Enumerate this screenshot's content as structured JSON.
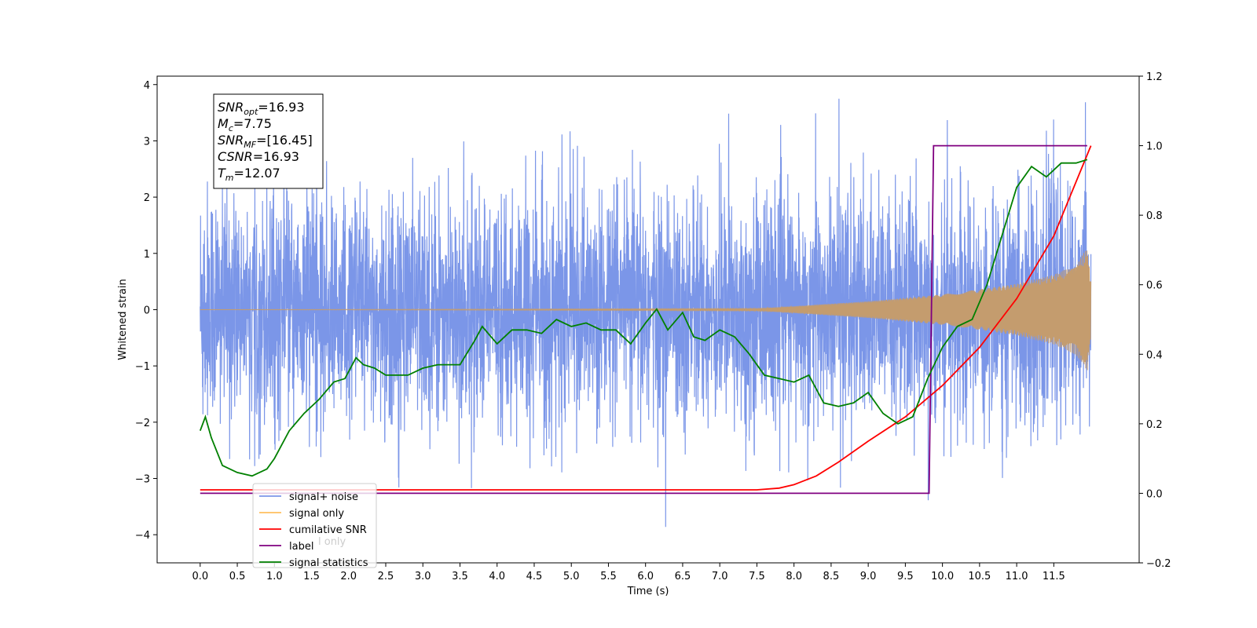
{
  "chart_data": {
    "type": "line",
    "xlabel": "Time (s)",
    "ylabel": "Whitened strain",
    "xlim": [
      -0.58,
      12.65
    ],
    "ylim": [
      -4.5,
      4.15
    ],
    "y2lim": [
      -0.2,
      1.2
    ],
    "x_ticks": [
      "0.0",
      "0.5",
      "1.0",
      "1.5",
      "2.0",
      "2.5",
      "3.0",
      "3.5",
      "4.0",
      "4.5",
      "5.0",
      "5.5",
      "6.0",
      "6.5",
      "7.0",
      "7.5",
      "8.0",
      "8.5",
      "9.0",
      "9.5",
      "10.0",
      "10.5",
      "11.0",
      "11.5"
    ],
    "y_ticks": [
      4,
      3,
      2,
      1,
      0,
      -1,
      -2,
      -3,
      -4
    ],
    "y2_ticks": [
      "1.2",
      "1.0",
      "0.8",
      "0.6",
      "0.4",
      "0.2",
      "0.0",
      "−0.2"
    ],
    "info_box": [
      {
        "base": "SNR",
        "sub": "opt",
        "value": "=16.93"
      },
      {
        "base": "M",
        "sub": "c",
        "value": "=7.75"
      },
      {
        "base": "SNR",
        "sub": "MF",
        "value": "=[16.45]"
      },
      {
        "base": "CSNR",
        "sub": "",
        "value": "=16.93"
      },
      {
        "base": "T",
        "sub": "m",
        "value": "=12.07"
      }
    ],
    "series": [
      {
        "name": "signal+ noise",
        "color": "#7b96e8",
        "axis": "left",
        "description_values": {
          "x_range": [
            0.0,
            12.0
          ],
          "typical_envelope": [
            -1.7,
            1.7
          ],
          "max_peak": 3.75,
          "min_peak": -4.1
        }
      },
      {
        "name": "signal only",
        "color": "#c49c6e",
        "axis": "left",
        "envelope": {
          "x": [
            0.0,
            7.5,
            8.0,
            9.0,
            10.0,
            10.5,
            11.0,
            11.5,
            11.8,
            11.95,
            12.0
          ],
          "amp": [
            0.0,
            0.02,
            0.06,
            0.15,
            0.27,
            0.36,
            0.46,
            0.62,
            0.8,
            1.1,
            0.5
          ]
        }
      },
      {
        "name": "cumilative SNR",
        "color": "#ff0000",
        "axis": "right",
        "x": [
          0.0,
          7.5,
          7.8,
          8.0,
          8.3,
          8.6,
          9.0,
          9.5,
          10.0,
          10.5,
          11.0,
          11.5,
          12.0
        ],
        "y": [
          0.01,
          0.01,
          0.015,
          0.025,
          0.05,
          0.09,
          0.15,
          0.22,
          0.31,
          0.42,
          0.56,
          0.74,
          1.0
        ]
      },
      {
        "name": "label",
        "color": "#800080",
        "axis": "right",
        "x": [
          0.0,
          9.82,
          9.88,
          11.95
        ],
        "y": [
          0.0,
          0.0,
          1.0,
          1.0
        ]
      },
      {
        "name": "signal statistics",
        "color": "#008000",
        "axis": "right",
        "x": [
          0.0,
          0.07,
          0.15,
          0.3,
          0.5,
          0.7,
          0.9,
          1.0,
          1.2,
          1.4,
          1.6,
          1.8,
          1.95,
          2.1,
          2.2,
          2.35,
          2.5,
          2.8,
          3.0,
          3.2,
          3.5,
          3.7,
          3.8,
          4.0,
          4.2,
          4.4,
          4.6,
          4.8,
          5.0,
          5.2,
          5.4,
          5.6,
          5.8,
          6.0,
          6.15,
          6.3,
          6.5,
          6.65,
          6.8,
          7.0,
          7.2,
          7.4,
          7.6,
          7.8,
          8.0,
          8.2,
          8.4,
          8.6,
          8.8,
          9.0,
          9.2,
          9.4,
          9.6,
          9.8,
          10.0,
          10.2,
          10.4,
          10.6,
          10.8,
          11.0,
          11.2,
          11.4,
          11.6,
          11.8,
          11.95
        ],
        "y": [
          0.18,
          0.22,
          0.16,
          0.08,
          0.06,
          0.05,
          0.07,
          0.1,
          0.18,
          0.23,
          0.27,
          0.32,
          0.33,
          0.39,
          0.37,
          0.36,
          0.34,
          0.34,
          0.36,
          0.37,
          0.37,
          0.44,
          0.48,
          0.43,
          0.47,
          0.47,
          0.46,
          0.5,
          0.48,
          0.49,
          0.47,
          0.47,
          0.43,
          0.49,
          0.53,
          0.47,
          0.52,
          0.45,
          0.44,
          0.47,
          0.45,
          0.4,
          0.34,
          0.33,
          0.32,
          0.34,
          0.26,
          0.25,
          0.26,
          0.29,
          0.23,
          0.2,
          0.22,
          0.33,
          0.42,
          0.48,
          0.5,
          0.6,
          0.74,
          0.88,
          0.94,
          0.91,
          0.95,
          0.95,
          0.96
        ]
      }
    ],
    "legend_placement": "lower-left",
    "legend": [
      "signal+ noise",
      "signal only",
      "cumilative SNR",
      "label",
      "signal statistics"
    ],
    "legend_ghost_text": "l only"
  }
}
